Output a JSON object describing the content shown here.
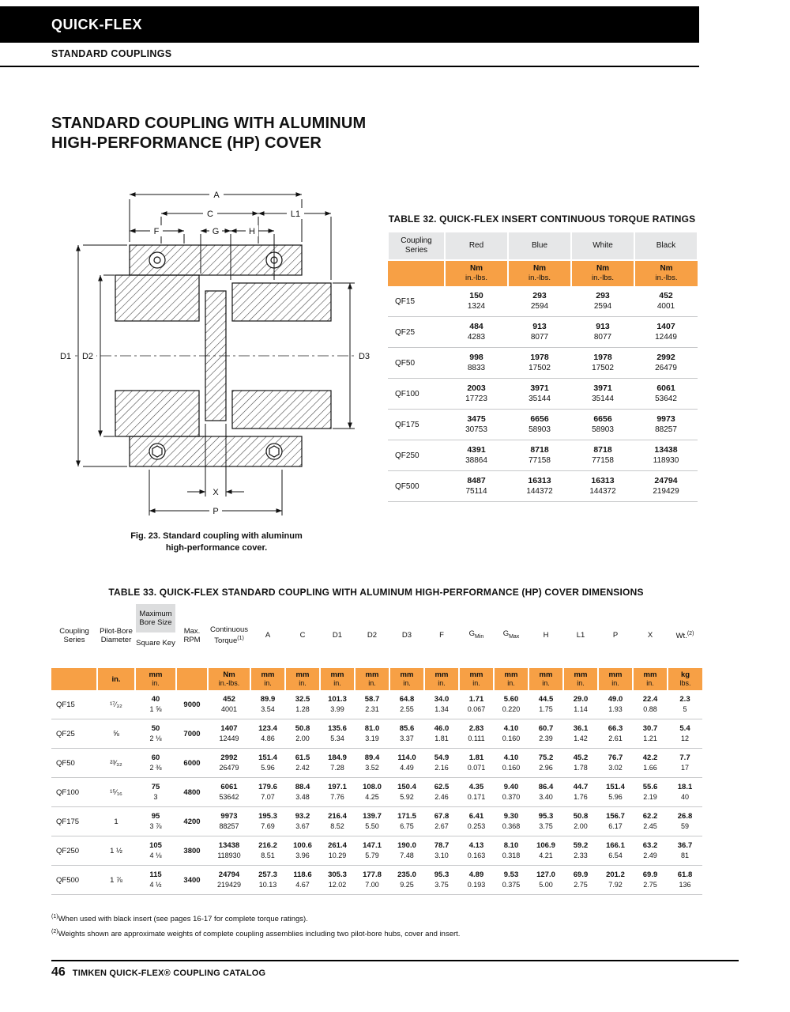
{
  "colors": {
    "accent": "#F7A045",
    "header_gray": "#E6E7E8",
    "box_gray": "#DCDDDE",
    "line_gray": "#C7C8CA"
  },
  "header": {
    "brand": "QUICK-FLEX",
    "subtitle": "STANDARD COUPLINGS"
  },
  "title": {
    "line1": "STANDARD COUPLING WITH ALUMINUM",
    "line2": "HIGH-PERFORMANCE (HP) COVER"
  },
  "figure": {
    "caption1": "Fig. 23. Standard coupling with aluminum",
    "caption2": "high-performance cover.",
    "dims": {
      "a": "A",
      "c": "C",
      "l1": "L1",
      "f": "F",
      "g": "G",
      "h": "H",
      "d1": "D1",
      "d2": "D2",
      "d3": "D3",
      "x": "X",
      "p": "P"
    }
  },
  "table32": {
    "title": "TABLE 32. QUICK-FLEX INSERT CONTINUOUS TORQUE RATINGS",
    "col_headers": [
      "Coupling Series",
      "Red",
      "Blue",
      "White",
      "Black"
    ],
    "units": [
      [
        "",
        ""
      ],
      [
        "Nm",
        "in.-lbs."
      ],
      [
        "Nm",
        "in.-lbs."
      ],
      [
        "Nm",
        "in.-lbs."
      ],
      [
        "Nm",
        "in.-lbs."
      ]
    ],
    "rows": [
      {
        "series": "QF15",
        "values": [
          [
            "150",
            "1324"
          ],
          [
            "293",
            "2594"
          ],
          [
            "293",
            "2594"
          ],
          [
            "452",
            "4001"
          ]
        ]
      },
      {
        "series": "QF25",
        "values": [
          [
            "484",
            "4283"
          ],
          [
            "913",
            "8077"
          ],
          [
            "913",
            "8077"
          ],
          [
            "1407",
            "12449"
          ]
        ]
      },
      {
        "series": "QF50",
        "values": [
          [
            "998",
            "8833"
          ],
          [
            "1978",
            "17502"
          ],
          [
            "1978",
            "17502"
          ],
          [
            "2992",
            "26479"
          ]
        ]
      },
      {
        "series": "QF100",
        "values": [
          [
            "2003",
            "17723"
          ],
          [
            "3971",
            "35144"
          ],
          [
            "3971",
            "35144"
          ],
          [
            "6061",
            "53642"
          ]
        ]
      },
      {
        "series": "QF175",
        "values": [
          [
            "3475",
            "30753"
          ],
          [
            "6656",
            "58903"
          ],
          [
            "6656",
            "58903"
          ],
          [
            "9973",
            "88257"
          ]
        ]
      },
      {
        "series": "QF250",
        "values": [
          [
            "4391",
            "38864"
          ],
          [
            "8718",
            "77158"
          ],
          [
            "8718",
            "77158"
          ],
          [
            "13438",
            "118930"
          ]
        ]
      },
      {
        "series": "QF500",
        "values": [
          [
            "8487",
            "75114"
          ],
          [
            "16313",
            "144372"
          ],
          [
            "16313",
            "144372"
          ],
          [
            "24794",
            "219429"
          ]
        ]
      }
    ]
  },
  "table33": {
    "title": "TABLE 33. QUICK-FLEX STANDARD COUPLING WITH ALUMINUM HIGH-PERFORMANCE (HP) COVER DIMENSIONS",
    "header": [
      {
        "label": "Coupling Series"
      },
      {
        "label": "Pilot-Bore Diameter"
      },
      {
        "label": "Maximum Bore Size",
        "label2": "Square Key"
      },
      {
        "label": "Max. RPM"
      },
      {
        "label": "Continuous Torque",
        "sup": "(1)"
      },
      {
        "label": "A"
      },
      {
        "label": "C"
      },
      {
        "label": "D1"
      },
      {
        "label": "D2"
      },
      {
        "label": "D3"
      },
      {
        "label": "F"
      },
      {
        "label": "G",
        "sub": "Min"
      },
      {
        "label": "G",
        "sub": "Max"
      },
      {
        "label": "H"
      },
      {
        "label": "L1"
      },
      {
        "label": "P"
      },
      {
        "label": "X"
      },
      {
        "label": "Wt.",
        "sup": "(2)"
      }
    ],
    "units": [
      [
        "",
        ""
      ],
      [
        "in.",
        ""
      ],
      [
        "mm",
        "in."
      ],
      [
        "",
        ""
      ],
      [
        "Nm",
        "in.-lbs."
      ],
      [
        "mm",
        "in."
      ],
      [
        "mm",
        "in."
      ],
      [
        "mm",
        "in."
      ],
      [
        "mm",
        "in."
      ],
      [
        "mm",
        "in."
      ],
      [
        "mm",
        "in."
      ],
      [
        "mm",
        "in."
      ],
      [
        "mm",
        "in."
      ],
      [
        "mm",
        "in."
      ],
      [
        "mm",
        "in."
      ],
      [
        "mm",
        "in."
      ],
      [
        "mm",
        "in."
      ],
      [
        "kg",
        "lbs."
      ]
    ],
    "rows": [
      {
        "series": "QF15",
        "pilot": "¹⁷⁄₃₂",
        "bore": [
          "40",
          "1 ⅝"
        ],
        "rpm": "9000",
        "pairs": [
          [
            "452",
            "4001"
          ],
          [
            "89.9",
            "3.54"
          ],
          [
            "32.5",
            "1.28"
          ],
          [
            "101.3",
            "3.99"
          ],
          [
            "58.7",
            "2.31"
          ],
          [
            "64.8",
            "2.55"
          ],
          [
            "34.0",
            "1.34"
          ],
          [
            "1.71",
            "0.067"
          ],
          [
            "5.60",
            "0.220"
          ],
          [
            "44.5",
            "1.75"
          ],
          [
            "29.0",
            "1.14"
          ],
          [
            "49.0",
            "1.93"
          ],
          [
            "22.4",
            "0.88"
          ],
          [
            "2.3",
            "5"
          ]
        ]
      },
      {
        "series": "QF25",
        "pilot": "⅝",
        "bore": [
          "50",
          "2 ⅛"
        ],
        "rpm": "7000",
        "pairs": [
          [
            "1407",
            "12449"
          ],
          [
            "123.4",
            "4.86"
          ],
          [
            "50.8",
            "2.00"
          ],
          [
            "135.6",
            "5.34"
          ],
          [
            "81.0",
            "3.19"
          ],
          [
            "85.6",
            "3.37"
          ],
          [
            "46.0",
            "1.81"
          ],
          [
            "2.83",
            "0.111"
          ],
          [
            "4.10",
            "0.160"
          ],
          [
            "60.7",
            "2.39"
          ],
          [
            "36.1",
            "1.42"
          ],
          [
            "66.3",
            "2.61"
          ],
          [
            "30.7",
            "1.21"
          ],
          [
            "5.4",
            "12"
          ]
        ]
      },
      {
        "series": "QF50",
        "pilot": "²³⁄₃₂",
        "bore": [
          "60",
          "2 ⅜"
        ],
        "rpm": "6000",
        "pairs": [
          [
            "2992",
            "26479"
          ],
          [
            "151.4",
            "5.96"
          ],
          [
            "61.5",
            "2.42"
          ],
          [
            "184.9",
            "7.28"
          ],
          [
            "89.4",
            "3.52"
          ],
          [
            "114.0",
            "4.49"
          ],
          [
            "54.9",
            "2.16"
          ],
          [
            "1.81",
            "0.071"
          ],
          [
            "4.10",
            "0.160"
          ],
          [
            "75.2",
            "2.96"
          ],
          [
            "45.2",
            "1.78"
          ],
          [
            "76.7",
            "3.02"
          ],
          [
            "42.2",
            "1.66"
          ],
          [
            "7.7",
            "17"
          ]
        ]
      },
      {
        "series": "QF100",
        "pilot": "¹⁵⁄₁₆",
        "bore": [
          "75",
          "3"
        ],
        "rpm": "4800",
        "pairs": [
          [
            "6061",
            "53642"
          ],
          [
            "179.6",
            "7.07"
          ],
          [
            "88.4",
            "3.48"
          ],
          [
            "197.1",
            "7.76"
          ],
          [
            "108.0",
            "4.25"
          ],
          [
            "150.4",
            "5.92"
          ],
          [
            "62.5",
            "2.46"
          ],
          [
            "4.35",
            "0.171"
          ],
          [
            "9.40",
            "0.370"
          ],
          [
            "86.4",
            "3.40"
          ],
          [
            "44.7",
            "1.76"
          ],
          [
            "151.4",
            "5.96"
          ],
          [
            "55.6",
            "2.19"
          ],
          [
            "18.1",
            "40"
          ]
        ]
      },
      {
        "series": "QF175",
        "pilot": "1",
        "bore": [
          "95",
          "3 ⅞"
        ],
        "rpm": "4200",
        "pairs": [
          [
            "9973",
            "88257"
          ],
          [
            "195.3",
            "7.69"
          ],
          [
            "93.2",
            "3.67"
          ],
          [
            "216.4",
            "8.52"
          ],
          [
            "139.7",
            "5.50"
          ],
          [
            "171.5",
            "6.75"
          ],
          [
            "67.8",
            "2.67"
          ],
          [
            "6.41",
            "0.253"
          ],
          [
            "9.30",
            "0.368"
          ],
          [
            "95.3",
            "3.75"
          ],
          [
            "50.8",
            "2.00"
          ],
          [
            "156.7",
            "6.17"
          ],
          [
            "62.2",
            "2.45"
          ],
          [
            "26.8",
            "59"
          ]
        ]
      },
      {
        "series": "QF250",
        "pilot": "1 ½",
        "bore": [
          "105",
          "4 ⅛"
        ],
        "rpm": "3800",
        "pairs": [
          [
            "13438",
            "118930"
          ],
          [
            "216.2",
            "8.51"
          ],
          [
            "100.6",
            "3.96"
          ],
          [
            "261.4",
            "10.29"
          ],
          [
            "147.1",
            "5.79"
          ],
          [
            "190.0",
            "7.48"
          ],
          [
            "78.7",
            "3.10"
          ],
          [
            "4.13",
            "0.163"
          ],
          [
            "8.10",
            "0.318"
          ],
          [
            "106.9",
            "4.21"
          ],
          [
            "59.2",
            "2.33"
          ],
          [
            "166.1",
            "6.54"
          ],
          [
            "63.2",
            "2.49"
          ],
          [
            "36.7",
            "81"
          ]
        ]
      },
      {
        "series": "QF500",
        "pilot": "1 ⅞",
        "bore": [
          "115",
          "4 ½"
        ],
        "rpm": "3400",
        "pairs": [
          [
            "24794",
            "219429"
          ],
          [
            "257.3",
            "10.13"
          ],
          [
            "118.6",
            "4.67"
          ],
          [
            "305.3",
            "12.02"
          ],
          [
            "177.8",
            "7.00"
          ],
          [
            "235.0",
            "9.25"
          ],
          [
            "95.3",
            "3.75"
          ],
          [
            "4.89",
            "0.193"
          ],
          [
            "9.53",
            "0.375"
          ],
          [
            "127.0",
            "5.00"
          ],
          [
            "69.9",
            "2.75"
          ],
          [
            "201.2",
            "7.92"
          ],
          [
            "69.9",
            "2.75"
          ],
          [
            "61.8",
            "136"
          ]
        ]
      }
    ]
  },
  "footnotes": [
    {
      "sup": "(1)",
      "text": "When used with black insert (see pages 16-17 for complete torque ratings)."
    },
    {
      "sup": "(2)",
      "text": "Weights shown are approximate weights of complete coupling assemblies including two pilot-bore hubs, cover and insert."
    }
  ],
  "footer": {
    "page_number": "46",
    "text": "TIMKEN QUICK-FLEX® COUPLING CATALOG"
  }
}
